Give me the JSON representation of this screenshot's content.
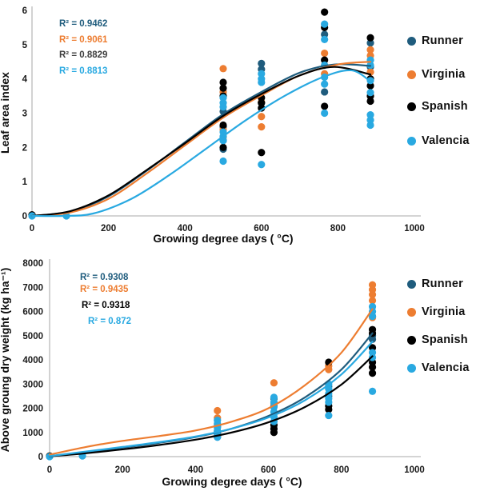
{
  "palette": {
    "runner": "#1F5C7D",
    "virginia": "#ED7D31",
    "spanish": "#000000",
    "valencia": "#29A9E1",
    "axis_line": "#C6C6C6",
    "tick_text": "#1A1A1A"
  },
  "chart_data": [
    {
      "type": "scatter",
      "xlabel": "Growing degree days ( °C)",
      "ylabel": "Leaf area index",
      "xlim": [
        0,
        1000
      ],
      "ylim": [
        0,
        6
      ],
      "xticks": [
        0,
        200,
        400,
        600,
        800,
        1000
      ],
      "yticks": [
        0,
        1,
        2,
        3,
        4,
        5,
        6
      ],
      "grid": false,
      "legend_position": "right",
      "r2_labels": [
        {
          "text": "R² = 0.9462",
          "color": "#1F5C7D"
        },
        {
          "text": "R² = 0.9061",
          "color": "#ED7D31"
        },
        {
          "text": "R² = 0.8829",
          "color": "#3F3F3F"
        },
        {
          "text": "R² = 0.8813",
          "color": "#29A9E1"
        }
      ],
      "series": [
        {
          "name": "Runner",
          "color": "#1F5C7D",
          "points": [
            [
              0,
              0.03
            ],
            [
              500,
              3.62
            ],
            [
              500,
              3.05
            ],
            [
              500,
              2.6
            ],
            [
              500,
              2.2
            ],
            [
              500,
              1.95
            ],
            [
              600,
              4.45
            ],
            [
              600,
              4.28
            ],
            [
              600,
              3.3
            ],
            [
              765,
              5.3
            ],
            [
              765,
              3.62
            ],
            [
              885,
              5.05
            ],
            [
              885,
              4.35
            ]
          ],
          "curve": [
            [
              0,
              0
            ],
            [
              100,
              0.13
            ],
            [
              200,
              0.57
            ],
            [
              300,
              1.32
            ],
            [
              400,
              2.15
            ],
            [
              500,
              2.97
            ],
            [
              600,
              3.62
            ],
            [
              700,
              4.18
            ],
            [
              790,
              4.42
            ],
            [
              885,
              4.38
            ]
          ]
        },
        {
          "name": "Virginia",
          "color": "#ED7D31",
          "points": [
            [
              0,
              0.03
            ],
            [
              500,
              4.3
            ],
            [
              500,
              3.62
            ],
            [
              500,
              2.52
            ],
            [
              500,
              2.3
            ],
            [
              600,
              3.32
            ],
            [
              600,
              2.9
            ],
            [
              600,
              2.6
            ],
            [
              765,
              4.75
            ],
            [
              765,
              4.15
            ],
            [
              885,
              4.85
            ],
            [
              885,
              4.68
            ],
            [
              885,
              4.2
            ]
          ],
          "curve": [
            [
              0,
              0
            ],
            [
              100,
              0.1
            ],
            [
              200,
              0.5
            ],
            [
              300,
              1.24
            ],
            [
              400,
              2.06
            ],
            [
              500,
              2.87
            ],
            [
              600,
              3.52
            ],
            [
              700,
              4.1
            ],
            [
              800,
              4.42
            ],
            [
              885,
              4.5
            ]
          ]
        },
        {
          "name": "Spanish",
          "color": "#000000",
          "points": [
            [
              0,
              0.03
            ],
            [
              500,
              3.9
            ],
            [
              500,
              3.73
            ],
            [
              500,
              3.5
            ],
            [
              500,
              2.65
            ],
            [
              500,
              2.0
            ],
            [
              600,
              3.45
            ],
            [
              600,
              3.3
            ],
            [
              600,
              3.15
            ],
            [
              600,
              1.85
            ],
            [
              765,
              5.95
            ],
            [
              765,
              5.5
            ],
            [
              765,
              4.55
            ],
            [
              765,
              3.2
            ],
            [
              885,
              5.2
            ],
            [
              885,
              4.0
            ],
            [
              885,
              3.8
            ],
            [
              885,
              3.5
            ],
            [
              885,
              3.35
            ]
          ],
          "curve": [
            [
              0,
              0
            ],
            [
              100,
              0.14
            ],
            [
              200,
              0.6
            ],
            [
              300,
              1.34
            ],
            [
              400,
              2.12
            ],
            [
              500,
              2.92
            ],
            [
              600,
              3.56
            ],
            [
              700,
              4.1
            ],
            [
              790,
              4.35
            ],
            [
              885,
              4.13
            ]
          ]
        },
        {
          "name": "Valencia",
          "color": "#29A9E1",
          "points": [
            [
              0,
              0
            ],
            [
              90,
              0
            ],
            [
              500,
              3.45
            ],
            [
              500,
              3.3
            ],
            [
              500,
              3.18
            ],
            [
              500,
              2.45
            ],
            [
              500,
              2.32
            ],
            [
              500,
              2.2
            ],
            [
              500,
              1.6
            ],
            [
              600,
              4.15
            ],
            [
              600,
              4.0
            ],
            [
              600,
              3.9
            ],
            [
              600,
              1.5
            ],
            [
              765,
              5.6
            ],
            [
              765,
              5.15
            ],
            [
              765,
              4.4
            ],
            [
              765,
              4.05
            ],
            [
              765,
              3.85
            ],
            [
              765,
              3.0
            ],
            [
              885,
              4.55
            ],
            [
              885,
              4.4
            ],
            [
              885,
              3.95
            ],
            [
              885,
              3.6
            ],
            [
              885,
              2.95
            ],
            [
              885,
              2.8
            ],
            [
              885,
              2.65
            ]
          ],
          "curve": [
            [
              0,
              0
            ],
            [
              80,
              0
            ],
            [
              160,
              0.07
            ],
            [
              260,
              0.5
            ],
            [
              360,
              1.2
            ],
            [
              460,
              2.0
            ],
            [
              560,
              2.8
            ],
            [
              660,
              3.5
            ],
            [
              760,
              4.05
            ],
            [
              835,
              4.25
            ],
            [
              885,
              3.93
            ]
          ]
        }
      ]
    },
    {
      "type": "scatter",
      "xlabel": "Growing degree days ( °C)",
      "ylabel": "Above groung dry weight (kg ha⁻¹)",
      "xlim": [
        0,
        1000
      ],
      "ylim": [
        0,
        8000
      ],
      "xticks": [
        0,
        200,
        400,
        600,
        800,
        1000
      ],
      "yticks": [
        0,
        1000,
        2000,
        3000,
        4000,
        5000,
        6000,
        7000,
        8000
      ],
      "grid": false,
      "legend_position": "right",
      "r2_labels": [
        {
          "text": "R² = 0.9308",
          "color": "#1F5C7D"
        },
        {
          "text": "R² = 0.9435",
          "color": "#ED7D31"
        },
        {
          "text": "R² = 0.9318",
          "color": "#000000"
        },
        {
          "text": "R² = 0.872",
          "color": "#29A9E1"
        }
      ],
      "series": [
        {
          "name": "Runner",
          "color": "#1F5C7D",
          "points": [
            [
              0,
              20
            ],
            [
              460,
              1250
            ],
            [
              460,
              1050
            ],
            [
              615,
              2400
            ],
            [
              615,
              2100
            ],
            [
              765,
              2900
            ],
            [
              765,
              2500
            ],
            [
              885,
              5800
            ],
            [
              885,
              5000
            ],
            [
              885,
              4850
            ]
          ],
          "curve": [
            [
              0,
              20
            ],
            [
              100,
              180
            ],
            [
              200,
              370
            ],
            [
              300,
              570
            ],
            [
              400,
              810
            ],
            [
              500,
              1160
            ],
            [
              600,
              1680
            ],
            [
              700,
              2450
            ],
            [
              800,
              3600
            ],
            [
              885,
              5100
            ]
          ]
        },
        {
          "name": "Virginia",
          "color": "#ED7D31",
          "points": [
            [
              0,
              30
            ],
            [
              460,
              1900
            ],
            [
              460,
              1600
            ],
            [
              615,
              3050
            ],
            [
              615,
              2200
            ],
            [
              765,
              3750
            ],
            [
              765,
              3600
            ],
            [
              885,
              7100
            ],
            [
              885,
              6900
            ],
            [
              885,
              6700
            ],
            [
              885,
              6450
            ],
            [
              885,
              5750
            ]
          ],
          "curve": [
            [
              0,
              80
            ],
            [
              100,
              400
            ],
            [
              200,
              650
            ],
            [
              300,
              850
            ],
            [
              400,
              1080
            ],
            [
              500,
              1450
            ],
            [
              600,
              2000
            ],
            [
              700,
              2950
            ],
            [
              800,
              4300
            ],
            [
              885,
              6100
            ]
          ]
        },
        {
          "name": "Spanish",
          "color": "#000000",
          "points": [
            [
              0,
              20
            ],
            [
              460,
              950
            ],
            [
              460,
              820
            ],
            [
              615,
              1300
            ],
            [
              615,
              1150
            ],
            [
              615,
              1000
            ],
            [
              765,
              3900
            ],
            [
              765,
              2100
            ],
            [
              765,
              1950
            ],
            [
              885,
              5250
            ],
            [
              885,
              5100
            ],
            [
              885,
              4500
            ],
            [
              885,
              3900
            ],
            [
              885,
              3700
            ],
            [
              885,
              3450
            ]
          ],
          "curve": [
            [
              0,
              10
            ],
            [
              100,
              140
            ],
            [
              200,
              300
            ],
            [
              300,
              480
            ],
            [
              400,
              700
            ],
            [
              500,
              1000
            ],
            [
              600,
              1420
            ],
            [
              700,
              2050
            ],
            [
              800,
              2980
            ],
            [
              885,
              4150
            ]
          ]
        },
        {
          "name": "Valencia",
          "color": "#29A9E1",
          "points": [
            [
              0,
              0
            ],
            [
              90,
              30
            ],
            [
              460,
              1500
            ],
            [
              460,
              1350
            ],
            [
              460,
              1200
            ],
            [
              460,
              1050
            ],
            [
              460,
              900
            ],
            [
              460,
              800
            ],
            [
              615,
              2450
            ],
            [
              615,
              2250
            ],
            [
              615,
              2050
            ],
            [
              615,
              1850
            ],
            [
              615,
              1650
            ],
            [
              615,
              1450
            ],
            [
              765,
              3000
            ],
            [
              765,
              2800
            ],
            [
              765,
              2600
            ],
            [
              765,
              2400
            ],
            [
              765,
              2250
            ],
            [
              765,
              1700
            ],
            [
              885,
              6200
            ],
            [
              885,
              6000
            ],
            [
              885,
              5800
            ],
            [
              885,
              4300
            ],
            [
              885,
              4100
            ],
            [
              885,
              2700
            ]
          ],
          "curve": [
            [
              0,
              20
            ],
            [
              100,
              210
            ],
            [
              200,
              400
            ],
            [
              300,
              600
            ],
            [
              400,
              830
            ],
            [
              500,
              1160
            ],
            [
              600,
              1620
            ],
            [
              700,
              2330
            ],
            [
              800,
              3400
            ],
            [
              885,
              4750
            ]
          ]
        }
      ]
    }
  ]
}
